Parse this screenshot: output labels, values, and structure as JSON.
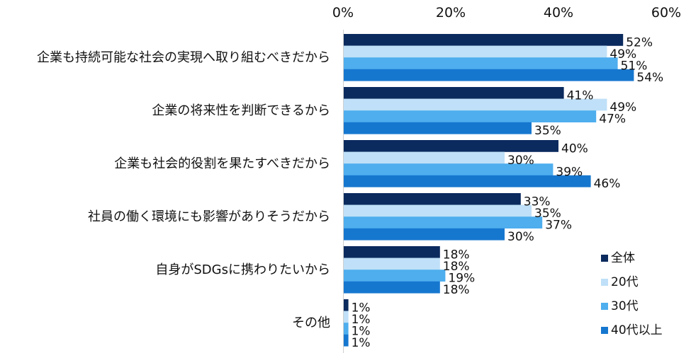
{
  "chart_data": {
    "type": "bar",
    "orientation": "horizontal",
    "title": "",
    "xlabel": "",
    "ylabel": "",
    "xlim": [
      0,
      60
    ],
    "ticks": [
      0,
      20,
      40,
      60
    ],
    "tick_labels": [
      "0%",
      "20%",
      "40%",
      "60%"
    ],
    "grid": false,
    "legend_position": "bottom-right",
    "categories": [
      "企業も持続可能な社会の実現へ取り組むべきだから",
      "企業の将来性を判断できるから",
      "企業も社会的役割を果たすべきだから",
      "社員の働く環境にも影響がありそうだから",
      "自身がSDGsに携わりたいから",
      "その他"
    ],
    "series": [
      {
        "name": "全体",
        "color": "#0b2a5e",
        "values": [
          52,
          41,
          40,
          33,
          18,
          1
        ],
        "labels": [
          "52%",
          "41%",
          "40%",
          "33%",
          "18%",
          "1%"
        ]
      },
      {
        "name": "20代",
        "color": "#bfe0f8",
        "values": [
          49,
          49,
          30,
          35,
          18,
          1
        ],
        "labels": [
          "49%",
          "49%",
          "30%",
          "35%",
          "18%",
          "1%"
        ]
      },
      {
        "name": "30代",
        "color": "#4eaeee",
        "values": [
          51,
          47,
          39,
          37,
          19,
          1
        ],
        "labels": [
          "51%",
          "47%",
          "39%",
          "37%",
          "19%",
          "1%"
        ]
      },
      {
        "name": "40代以上",
        "color": "#1677cf",
        "values": [
          54,
          35,
          46,
          30,
          18,
          1
        ],
        "labels": [
          "54%",
          "35%",
          "46%",
          "30%",
          "18%",
          "1%"
        ]
      }
    ]
  }
}
